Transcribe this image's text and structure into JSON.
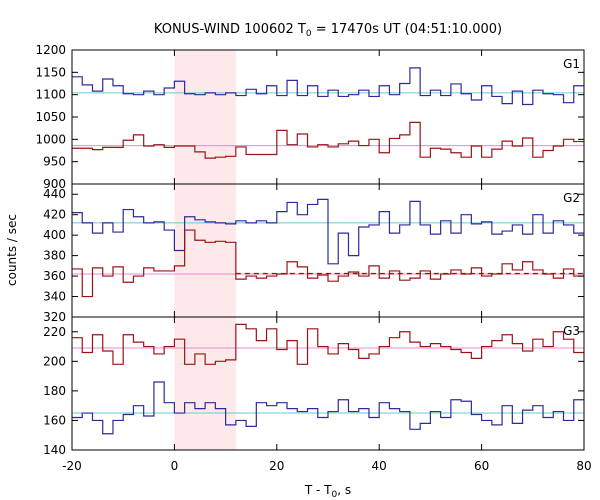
{
  "chart_data": {
    "type": "line",
    "title": {
      "prefix": "KONUS-WIND 100602 T",
      "sub": "0",
      "suffix": " = 17470s UT (04:51:10.000)"
    },
    "xlabel": {
      "prefix": "T - T",
      "sub": "0",
      "suffix": ", s"
    },
    "ylabel": "counts / sec",
    "xlim": [
      -20,
      80
    ],
    "x_ticks": [
      -20,
      0,
      20,
      40,
      60,
      80
    ],
    "x_tick_labels": [
      "-20",
      "0",
      "20",
      "40",
      "60",
      "80"
    ],
    "shaded_interval": [
      0,
      12
    ],
    "colors": {
      "blue": "#2b2b9c",
      "red": "#9b1414",
      "cyan": "#66cccc",
      "pink": "#ee88cc",
      "shade": "#fde8ea"
    },
    "panels": [
      {
        "label": "G1",
        "ylim": [
          900,
          1200
        ],
        "y_ticks": [
          900,
          950,
          1000,
          1050,
          1100,
          1150,
          1200
        ],
        "y_tick_labels": [
          "900",
          "950",
          "1000",
          "1050",
          "1100",
          "1150",
          "1200"
        ],
        "series": [
          {
            "color": "blue",
            "edges": [
              -20,
              -18,
              -16,
              -14,
              -12,
              -10,
              -8,
              -6,
              -4,
              -2,
              0,
              2,
              4,
              6,
              8,
              10,
              12,
              14,
              16,
              18,
              20,
              22,
              24,
              26,
              28,
              30,
              32,
              34,
              36,
              38,
              40,
              42,
              44,
              46,
              48,
              50,
              52,
              54,
              56,
              58,
              60,
              62,
              64,
              66,
              68,
              70,
              72,
              74,
              76,
              78,
              80
            ],
            "values": [
              1140,
              1122,
              1108,
              1135,
              1120,
              1102,
              1100,
              1108,
              1100,
              1115,
              1130,
              1102,
              1100,
              1104,
              1100,
              1104,
              1098,
              1112,
              1102,
              1120,
              1098,
              1132,
              1098,
              1120,
              1096,
              1110,
              1096,
              1100,
              1110,
              1096,
              1120,
              1100,
              1125,
              1160,
              1098,
              1110,
              1098,
              1124,
              1102,
              1088,
              1120,
              1096,
              1080,
              1108,
              1078,
              1110,
              1102,
              1100,
              1082,
              1120
            ]
          },
          {
            "color": "red",
            "edges": [
              -20,
              -18,
              -16,
              -14,
              -12,
              -10,
              -8,
              -6,
              -4,
              -2,
              0,
              2,
              4,
              6,
              8,
              10,
              12,
              14,
              16,
              18,
              20,
              22,
              24,
              26,
              28,
              30,
              32,
              34,
              36,
              38,
              40,
              42,
              44,
              46,
              48,
              50,
              52,
              54,
              56,
              58,
              60,
              62,
              64,
              66,
              68,
              70,
              72,
              74,
              76,
              78,
              80
            ],
            "values": [
              980,
              980,
              977,
              982,
              982,
              998,
              1010,
              985,
              988,
              982,
              985,
              985,
              972,
              958,
              960,
              962,
              983,
              966,
              966,
              966,
              1020,
              988,
              1012,
              983,
              988,
              983,
              990,
              996,
              986,
              1000,
              970,
              1002,
              1010,
              1038,
              960,
              980,
              978,
              970,
              960,
              985,
              960,
              978,
              996,
              985,
              1003,
              960,
              975,
              985,
              1000,
              995
            ]
          }
        ],
        "refs": [
          {
            "color": "cyan",
            "value": 1104,
            "dashed": false
          },
          {
            "color": "pink",
            "value": 986,
            "dashed": false
          }
        ]
      },
      {
        "label": "G2",
        "ylim": [
          320,
          450
        ],
        "y_ticks": [
          320,
          340,
          360,
          380,
          400,
          420,
          440
        ],
        "y_tick_labels": [
          "320",
          "340",
          "360",
          "380",
          "400",
          "420",
          "440"
        ],
        "series": [
          {
            "color": "blue",
            "edges": [
              -20,
              -18,
              -16,
              -14,
              -12,
              -10,
              -8,
              -6,
              -4,
              -2,
              0,
              2,
              4,
              6,
              8,
              10,
              12,
              14,
              16,
              18,
              20,
              22,
              24,
              26,
              28,
              30,
              32,
              34,
              36,
              38,
              40,
              42,
              44,
              46,
              48,
              50,
              52,
              54,
              56,
              58,
              60,
              62,
              64,
              66,
              68,
              70,
              72,
              74,
              76,
              78,
              80
            ],
            "values": [
              422,
              412,
              402,
              412,
              403,
              425,
              418,
              412,
              413,
              405,
              385,
              418,
              415,
              413,
              412,
              411,
              414,
              412,
              414,
              412,
              423,
              432,
              420,
              430,
              435,
              372,
              402,
              380,
              408,
              410,
              423,
              402,
              410,
              433,
              410,
              401,
              414,
              402,
              420,
              411,
              413,
              401,
              404,
              410,
              401,
              420,
              402,
              414,
              410,
              402
            ]
          },
          {
            "color": "red",
            "edges": [
              -20,
              -18,
              -16,
              -14,
              -12,
              -10,
              -8,
              -6,
              -4,
              -2,
              0,
              2,
              4,
              6,
              8,
              10,
              12,
              14,
              16,
              18,
              20,
              22,
              24,
              26,
              28,
              30,
              32,
              34,
              36,
              38,
              40,
              42,
              44,
              46,
              48,
              50,
              52,
              54,
              56,
              58,
              60,
              62,
              64,
              66,
              68,
              70,
              72,
              74,
              76,
              78,
              80
            ],
            "values": [
              367,
              340,
              368,
              360,
              369,
              354,
              360,
              368,
              365,
              365,
              370,
              405,
              395,
              393,
              394,
              393,
              357,
              360,
              358,
              360,
              362,
              374,
              369,
              358,
              361,
              355,
              360,
              364,
              360,
              370,
              358,
              365,
              356,
              358,
              365,
              357,
              362,
              366,
              362,
              368,
              360,
              362,
              372,
              366,
              374,
              366,
              362,
              358,
              367,
              360
            ]
          }
        ],
        "refs": [
          {
            "color": "cyan",
            "value": 412,
            "dashed": false
          },
          {
            "color": "pink",
            "value": 362,
            "dashed": false
          },
          {
            "color": "red",
            "value": 362.5,
            "dashed": true,
            "from": 12
          }
        ]
      },
      {
        "label": "G3",
        "ylim": [
          140,
          230
        ],
        "y_ticks": [
          140,
          160,
          180,
          200,
          220
        ],
        "y_tick_labels": [
          "140",
          "160",
          "180",
          "200",
          "220"
        ],
        "series": [
          {
            "color": "red",
            "edges": [
              -20,
              -18,
              -16,
              -14,
              -12,
              -10,
              -8,
              -6,
              -4,
              -2,
              0,
              2,
              4,
              6,
              8,
              10,
              12,
              14,
              16,
              18,
              20,
              22,
              24,
              26,
              28,
              30,
              32,
              34,
              36,
              38,
              40,
              42,
              44,
              46,
              48,
              50,
              52,
              54,
              56,
              58,
              60,
              62,
              64,
              66,
              68,
              70,
              72,
              74,
              76,
              78,
              80
            ],
            "values": [
              216,
              206,
              218,
              207,
              198,
              218,
              213,
              210,
              205,
              210,
              215,
              198,
              205,
              198,
              200,
              201,
              225,
              222,
              214,
              222,
              208,
              214,
              198,
              222,
              210,
              205,
              212,
              208,
              202,
              205,
              210,
              216,
              220,
              213,
              210,
              212,
              210,
              208,
              206,
              202,
              210,
              214,
              218,
              212,
              207,
              215,
              210,
              220,
              215,
              206
            ]
          },
          {
            "color": "blue",
            "edges": [
              -20,
              -18,
              -16,
              -14,
              -12,
              -10,
              -8,
              -6,
              -4,
              -2,
              0,
              2,
              4,
              6,
              8,
              10,
              12,
              14,
              16,
              18,
              20,
              22,
              24,
              26,
              28,
              30,
              32,
              34,
              36,
              38,
              40,
              42,
              44,
              46,
              48,
              50,
              52,
              54,
              56,
              58,
              60,
              62,
              64,
              66,
              68,
              70,
              72,
              74,
              76,
              78,
              80
            ],
            "values": [
              162,
              165,
              160,
              151,
              160,
              164,
              170,
              163,
              186,
              172,
              165,
              172,
              168,
              172,
              168,
              157,
              160,
              156,
              172,
              170,
              172,
              168,
              166,
              168,
              162,
              166,
              174,
              166,
              168,
              162,
              172,
              168,
              166,
              154,
              158,
              166,
              162,
              174,
              173,
              164,
              160,
              157,
              170,
              158,
              167,
              170,
              162,
              166,
              160,
              174
            ]
          }
        ],
        "refs": [
          {
            "color": "pink",
            "value": 209,
            "dashed": false
          },
          {
            "color": "cyan",
            "value": 165,
            "dashed": false
          }
        ]
      }
    ]
  }
}
